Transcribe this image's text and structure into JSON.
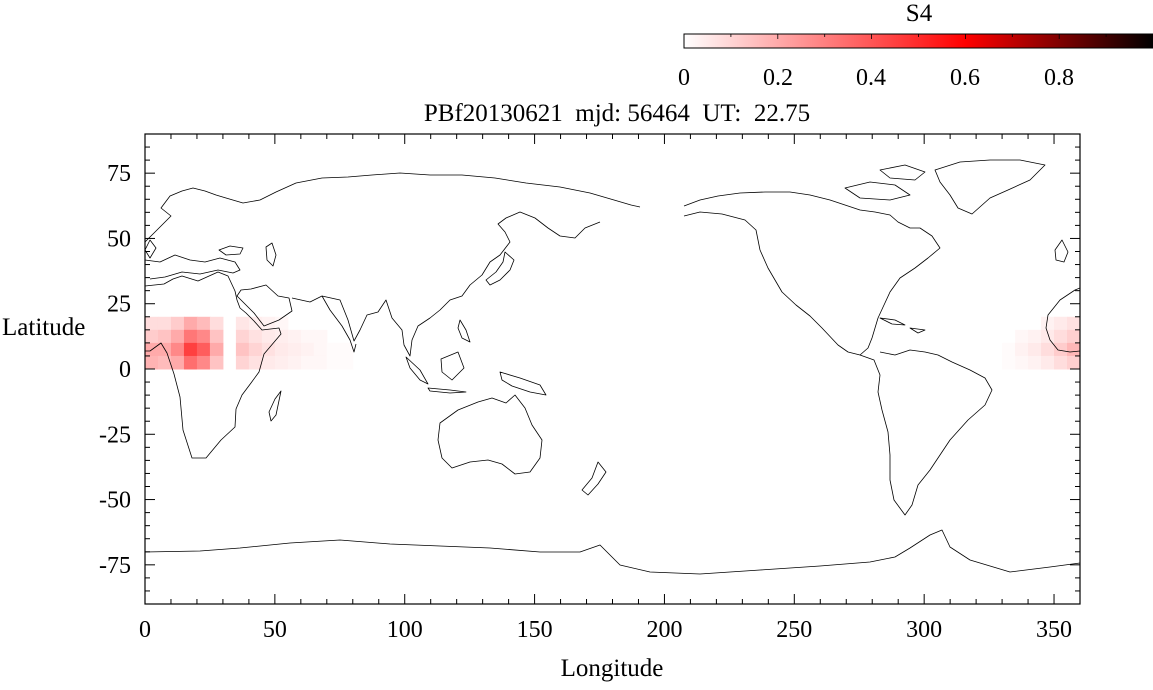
{
  "plot": {
    "title": "PBf20130621  mjd: 56464  UT:  22.75",
    "xlabel": "Longitude",
    "ylabel": "Latitude"
  },
  "colorbar": {
    "label": "S4",
    "tick_labels": [
      "0",
      "0.2",
      "0.4",
      "0.6",
      "0.8"
    ],
    "range": [
      0,
      1
    ],
    "colors": {
      "low": "#ffffff",
      "mid": "#ff0000",
      "high": "#000000"
    }
  },
  "chart_data": {
    "type": "heatmap",
    "title": "PBf20130621  mjd: 56464  UT:  22.75",
    "xlabel": "Longitude",
    "ylabel": "Latitude",
    "xlim": [
      0,
      360
    ],
    "ylim": [
      -90,
      90
    ],
    "xticks": [
      0,
      50,
      100,
      150,
      200,
      250,
      300,
      350
    ],
    "yticks": [
      -75,
      -50,
      -25,
      0,
      25,
      50,
      75
    ],
    "grid": false,
    "colorbar_label": "S4",
    "cell_size_deg": {
      "lon": 5,
      "lat": 5
    },
    "cells": [
      {
        "lon": 0,
        "lat": 15,
        "s4": 0.08
      },
      {
        "lon": 0,
        "lat": 10,
        "s4": 0.12
      },
      {
        "lon": 0,
        "lat": 5,
        "s4": 0.2
      },
      {
        "lon": 0,
        "lat": 0,
        "s4": 0.18
      },
      {
        "lon": 5,
        "lat": 15,
        "s4": 0.08
      },
      {
        "lon": 5,
        "lat": 10,
        "s4": 0.14
      },
      {
        "lon": 5,
        "lat": 5,
        "s4": 0.2
      },
      {
        "lon": 5,
        "lat": 0,
        "s4": 0.16
      },
      {
        "lon": 10,
        "lat": 15,
        "s4": 0.12
      },
      {
        "lon": 10,
        "lat": 10,
        "s4": 0.2
      },
      {
        "lon": 10,
        "lat": 5,
        "s4": 0.28
      },
      {
        "lon": 10,
        "lat": 0,
        "s4": 0.2
      },
      {
        "lon": 15,
        "lat": 15,
        "s4": 0.2
      },
      {
        "lon": 15,
        "lat": 10,
        "s4": 0.32
      },
      {
        "lon": 15,
        "lat": 5,
        "s4": 0.45
      },
      {
        "lon": 15,
        "lat": 0,
        "s4": 0.34
      },
      {
        "lon": 20,
        "lat": 15,
        "s4": 0.16
      },
      {
        "lon": 20,
        "lat": 10,
        "s4": 0.28
      },
      {
        "lon": 20,
        "lat": 5,
        "s4": 0.38
      },
      {
        "lon": 20,
        "lat": 0,
        "s4": 0.28
      },
      {
        "lon": 25,
        "lat": 15,
        "s4": 0.08
      },
      {
        "lon": 25,
        "lat": 10,
        "s4": 0.14
      },
      {
        "lon": 25,
        "lat": 5,
        "s4": 0.2
      },
      {
        "lon": 25,
        "lat": 0,
        "s4": 0.14
      },
      {
        "lon": 35,
        "lat": 15,
        "s4": 0.06
      },
      {
        "lon": 35,
        "lat": 10,
        "s4": 0.1
      },
      {
        "lon": 35,
        "lat": 5,
        "s4": 0.14
      },
      {
        "lon": 35,
        "lat": 0,
        "s4": 0.1
      },
      {
        "lon": 40,
        "lat": 15,
        "s4": 0.04
      },
      {
        "lon": 40,
        "lat": 10,
        "s4": 0.07
      },
      {
        "lon": 40,
        "lat": 5,
        "s4": 0.1
      },
      {
        "lon": 40,
        "lat": 0,
        "s4": 0.07
      },
      {
        "lon": 45,
        "lat": 15,
        "s4": 0.03
      },
      {
        "lon": 45,
        "lat": 10,
        "s4": 0.05
      },
      {
        "lon": 45,
        "lat": 5,
        "s4": 0.07
      },
      {
        "lon": 45,
        "lat": 0,
        "s4": 0.05
      },
      {
        "lon": 50,
        "lat": 15,
        "s4": 0.02
      },
      {
        "lon": 50,
        "lat": 10,
        "s4": 0.04
      },
      {
        "lon": 50,
        "lat": 5,
        "s4": 0.05
      },
      {
        "lon": 50,
        "lat": 0,
        "s4": 0.04
      },
      {
        "lon": 55,
        "lat": 10,
        "s4": 0.03
      },
      {
        "lon": 55,
        "lat": 5,
        "s4": 0.04
      },
      {
        "lon": 55,
        "lat": 0,
        "s4": 0.03
      },
      {
        "lon": 60,
        "lat": 10,
        "s4": 0.02
      },
      {
        "lon": 60,
        "lat": 5,
        "s4": 0.03
      },
      {
        "lon": 60,
        "lat": 0,
        "s4": 0.02
      },
      {
        "lon": 65,
        "lat": 10,
        "s4": 0.02
      },
      {
        "lon": 65,
        "lat": 5,
        "s4": 0.02
      },
      {
        "lon": 65,
        "lat": 0,
        "s4": 0.02
      },
      {
        "lon": 70,
        "lat": 5,
        "s4": 0.01
      },
      {
        "lon": 70,
        "lat": 0,
        "s4": 0.01
      },
      {
        "lon": 75,
        "lat": 5,
        "s4": 0.01
      },
      {
        "lon": 75,
        "lat": 0,
        "s4": 0.01
      },
      {
        "lon": 330,
        "lat": 5,
        "s4": 0.01
      },
      {
        "lon": 330,
        "lat": 0,
        "s4": 0.01
      },
      {
        "lon": 335,
        "lat": 10,
        "s4": 0.02
      },
      {
        "lon": 335,
        "lat": 5,
        "s4": 0.03
      },
      {
        "lon": 335,
        "lat": 0,
        "s4": 0.02
      },
      {
        "lon": 340,
        "lat": 10,
        "s4": 0.03
      },
      {
        "lon": 340,
        "lat": 5,
        "s4": 0.05
      },
      {
        "lon": 340,
        "lat": 0,
        "s4": 0.03
      },
      {
        "lon": 345,
        "lat": 15,
        "s4": 0.03
      },
      {
        "lon": 345,
        "lat": 10,
        "s4": 0.05
      },
      {
        "lon": 345,
        "lat": 5,
        "s4": 0.08
      },
      {
        "lon": 345,
        "lat": 0,
        "s4": 0.05
      },
      {
        "lon": 350,
        "lat": 15,
        "s4": 0.05
      },
      {
        "lon": 350,
        "lat": 10,
        "s4": 0.08
      },
      {
        "lon": 350,
        "lat": 5,
        "s4": 0.12
      },
      {
        "lon": 350,
        "lat": 0,
        "s4": 0.08
      },
      {
        "lon": 355,
        "lat": 15,
        "s4": 0.07
      },
      {
        "lon": 355,
        "lat": 10,
        "s4": 0.11
      },
      {
        "lon": 355,
        "lat": 5,
        "s4": 0.17
      },
      {
        "lon": 355,
        "lat": 0,
        "s4": 0.11
      }
    ]
  }
}
